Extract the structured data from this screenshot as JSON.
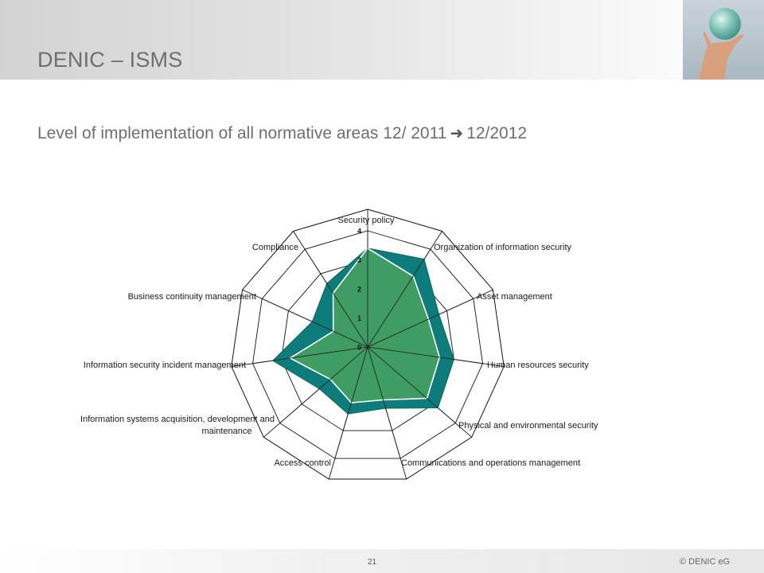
{
  "slide": {
    "title": "DENIC – ISMS",
    "subtitle_before": "Level of implementation of all normative areas 12/ 2011",
    "subtitle_after": "12/2012",
    "page_number": "21",
    "copyright": "© DENIC eG",
    "arrow_icon": "arrow-right-icon"
  },
  "colors": {
    "series_2012": "#0e7c7b",
    "series_2011": "#3f9c63",
    "grid": "#111111"
  },
  "chart_data": {
    "type": "radar",
    "categories": [
      "Security policy",
      "Organization of information security",
      "Asset management",
      "Human resources security",
      "Physical and environmental security",
      "Communications and operations management",
      "Access control",
      "Information systems acquisition, development and maintenance",
      "Information security incident management",
      "Business continuity management",
      "Compliance"
    ],
    "radial_ticks": [
      "0",
      "1",
      "2",
      "3",
      "4"
    ],
    "rlim": [
      0,
      4
    ],
    "series": [
      {
        "values": [
          3.4,
          3.6,
          2.7,
          3.0,
          3.2,
          2.2,
          2.4,
          2.2,
          3.3,
          2.1,
          2.6
        ]
      },
      {
        "values": [
          3.4,
          2.9,
          2.3,
          2.5,
          2.7,
          1.9,
          2.0,
          1.7,
          2.7,
          1.3,
          2.2
        ]
      }
    ],
    "grid": true,
    "legend": "none"
  }
}
